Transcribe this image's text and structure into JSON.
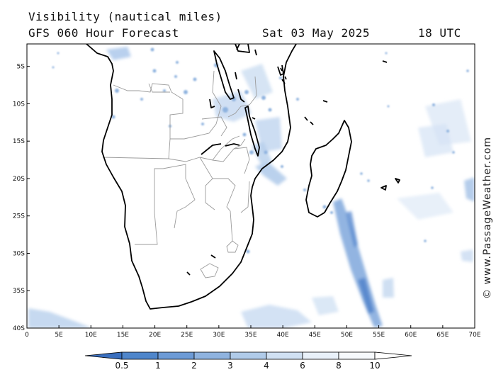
{
  "header": {
    "title": "Visibility (nautical miles)",
    "subtitle": "GFS 060 Hour Forecast",
    "date": "Sat 03 May 2025",
    "time": "18 UTC"
  },
  "map": {
    "lon_min": 0,
    "lon_max": 70,
    "lat_min": -40,
    "lat_max": -2,
    "lon_ticks": [
      {
        "value": 0,
        "label": "0"
      },
      {
        "value": 5,
        "label": "5E"
      },
      {
        "value": 10,
        "label": "10E"
      },
      {
        "value": 15,
        "label": "15E"
      },
      {
        "value": 20,
        "label": "20E"
      },
      {
        "value": 25,
        "label": "25E"
      },
      {
        "value": 30,
        "label": "30E"
      },
      {
        "value": 35,
        "label": "35E"
      },
      {
        "value": 40,
        "label": "40E"
      },
      {
        "value": 45,
        "label": "45E"
      },
      {
        "value": 50,
        "label": "50E"
      },
      {
        "value": 55,
        "label": "55E"
      },
      {
        "value": 60,
        "label": "60E"
      },
      {
        "value": 65,
        "label": "65E"
      },
      {
        "value": 70,
        "label": "70E"
      }
    ],
    "lat_ticks": [
      {
        "value": -5,
        "label": "5S"
      },
      {
        "value": -10,
        "label": "10S"
      },
      {
        "value": -15,
        "label": "15S"
      },
      {
        "value": -20,
        "label": "20S"
      },
      {
        "value": -25,
        "label": "25S"
      },
      {
        "value": -30,
        "label": "30S"
      },
      {
        "value": -35,
        "label": "35S"
      },
      {
        "value": -40,
        "label": "40S"
      }
    ]
  },
  "colorbar": {
    "labels": [
      "0.5",
      "1",
      "2",
      "3",
      "4",
      "6",
      "8",
      "10"
    ],
    "colors": [
      "#3a6fbf",
      "#4f86cb",
      "#6d9bd6",
      "#8fb3df",
      "#b0cbe9",
      "#d0e0f2",
      "#e9f1fa",
      "#f7fafd",
      "#ffffff"
    ]
  },
  "watermark": "© www.PassageWeather.com"
}
